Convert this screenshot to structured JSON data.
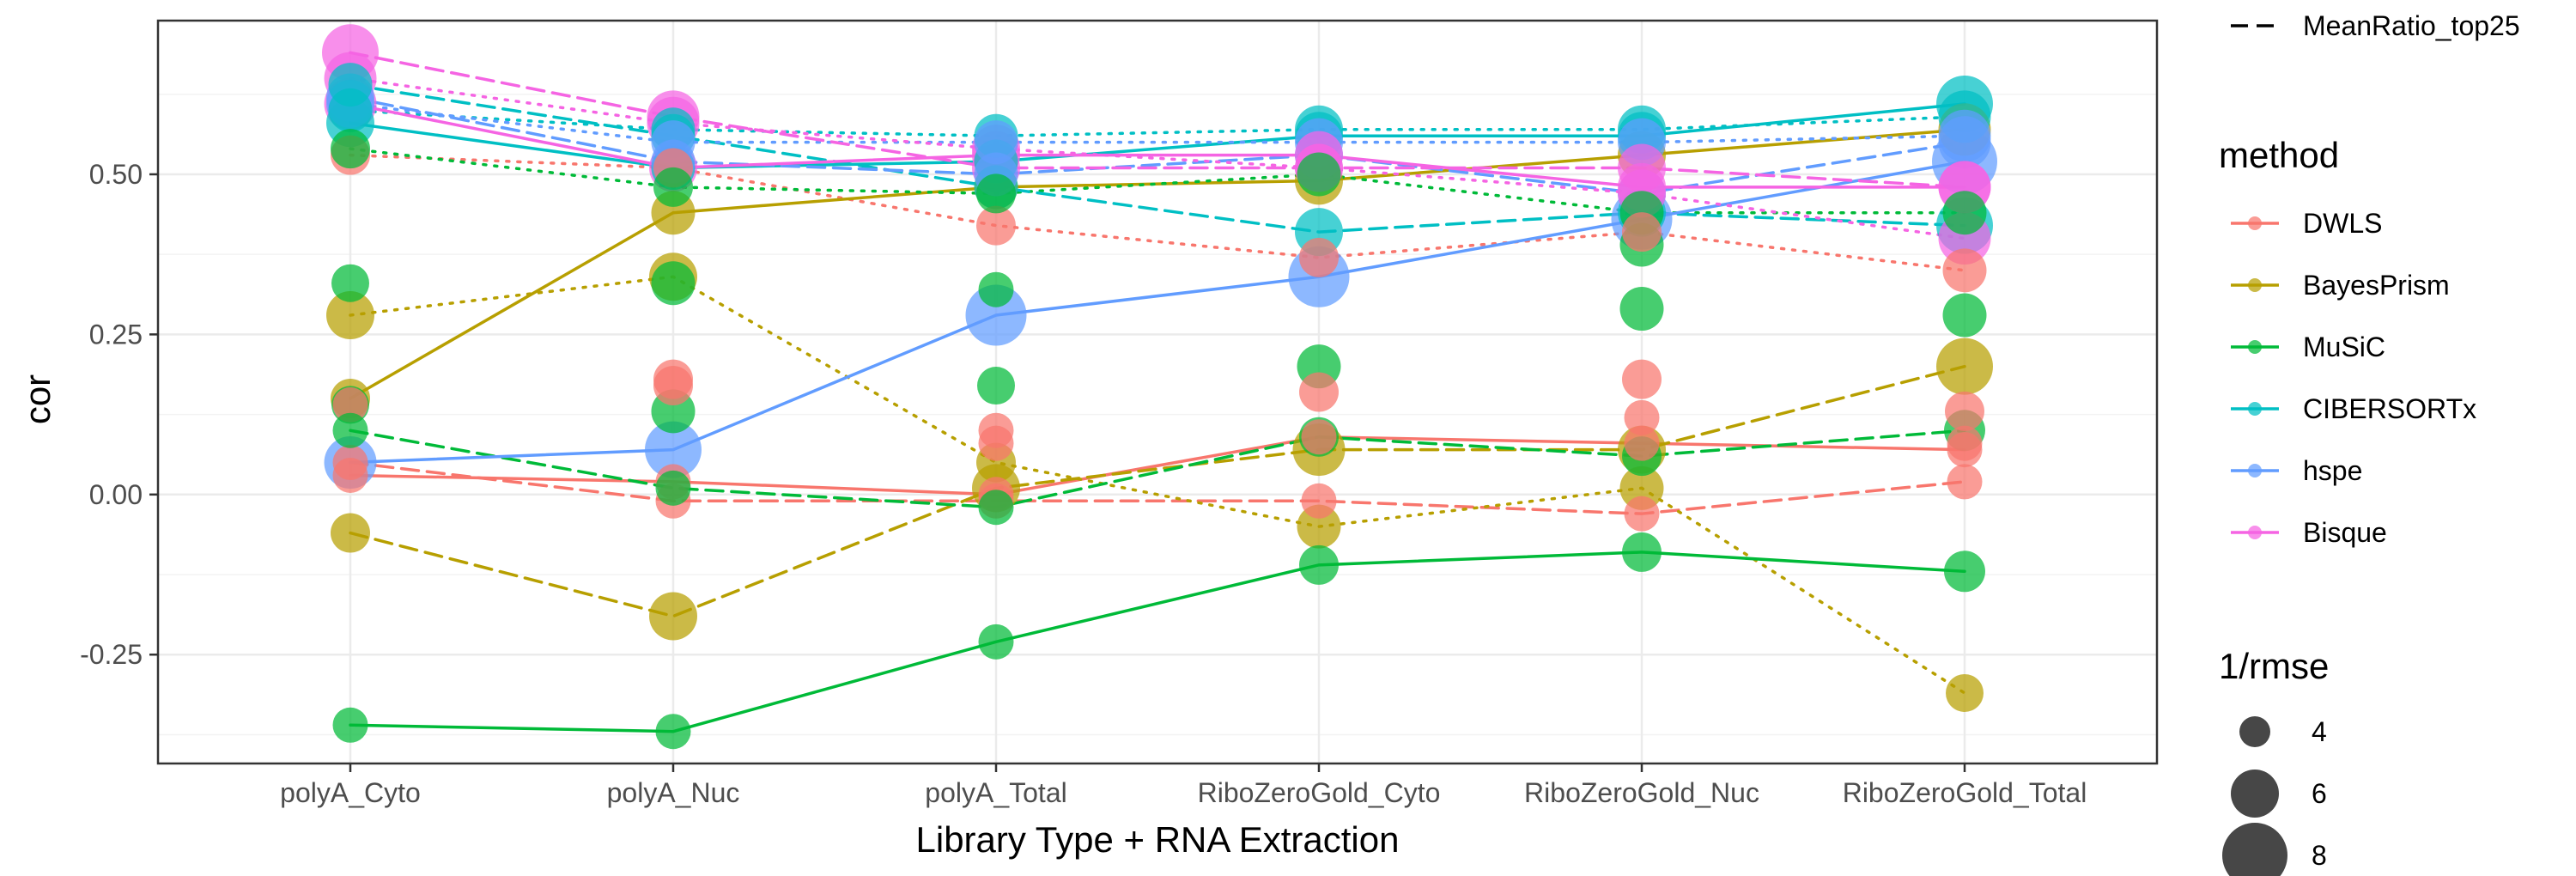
{
  "chart_data": {
    "type": "scatter",
    "xlabel": "Library Type + RNA Extraction",
    "ylabel": "cor",
    "categories": [
      "polyA_Cyto",
      "polyA_Nuc",
      "polyA_Total",
      "RiboZeroGold_Cyto",
      "RiboZeroGold_Nuc",
      "RiboZeroGold_Total"
    ],
    "ylim": [
      -0.42,
      0.74
    ],
    "yticks": [
      -0.25,
      0.0,
      0.25,
      0.5
    ],
    "ytick_labels": [
      "-0.25",
      "0.00",
      "0.25",
      "0.50"
    ],
    "grid": true,
    "legend_position": "right",
    "methods": [
      {
        "name": "DWLS",
        "color": "#F8766D"
      },
      {
        "name": "BayesPrism",
        "color": "#B79F00"
      },
      {
        "name": "MuSiC",
        "color": "#00BA38"
      },
      {
        "name": "CIBERSORTx",
        "color": "#00BFC4"
      },
      {
        "name": "hspe",
        "color": "#619CFF"
      },
      {
        "name": "Bisque",
        "color": "#F564E3"
      }
    ],
    "linetype_legend": [
      {
        "name": "MeanRatio_top25",
        "dash": "dashed"
      }
    ],
    "size_legend": {
      "title": "1/rmse",
      "values": [
        4,
        6,
        8
      ]
    },
    "method_legend_title": "method",
    "series": [
      {
        "method": "DWLS",
        "linetype": "solid",
        "values": [
          0.03,
          0.02,
          0.0,
          0.09,
          0.08,
          0.07
        ],
        "sizes": [
          4.5,
          4.5,
          4.5,
          4.5,
          4.5,
          4.5
        ]
      },
      {
        "method": "DWLS",
        "linetype": "dashed",
        "values": [
          0.05,
          -0.01,
          -0.01,
          -0.01,
          -0.03,
          0.02
        ],
        "sizes": [
          4.5,
          4.5,
          4.5,
          4.5,
          4.5,
          4.5
        ]
      },
      {
        "method": "DWLS",
        "linetype": "dotted",
        "values": [
          0.53,
          0.51,
          0.42,
          0.37,
          0.41,
          0.35
        ],
        "sizes": [
          5,
          5,
          5,
          5,
          5,
          5.5
        ]
      },
      {
        "method": "DWLS",
        "linetype": "none",
        "values": [
          0.14,
          0.17,
          0.1,
          0.16,
          0.18,
          0.13
        ],
        "sizes": [
          4.5,
          5,
          4.5,
          5,
          5,
          5
        ]
      },
      {
        "method": "DWLS",
        "linetype": "none",
        "values": [
          null,
          0.18,
          0.08,
          null,
          0.12,
          0.08
        ],
        "sizes": [
          4.5,
          5,
          4.5,
          4.5,
          4.5,
          4.5
        ]
      },
      {
        "method": "BayesPrism",
        "linetype": "solid",
        "values": [
          0.15,
          0.44,
          0.48,
          0.49,
          0.53,
          0.57
        ],
        "sizes": [
          5,
          5.5,
          5.5,
          6,
          6,
          6.5
        ]
      },
      {
        "method": "BayesPrism",
        "linetype": "dashed",
        "values": [
          -0.06,
          -0.19,
          0.01,
          0.07,
          0.07,
          0.2
        ],
        "sizes": [
          5,
          6,
          6,
          6.5,
          6,
          7
        ]
      },
      {
        "method": "BayesPrism",
        "linetype": "dotted",
        "values": [
          0.28,
          0.34,
          0.05,
          -0.05,
          0.01,
          -0.31
        ],
        "sizes": [
          6,
          6,
          5,
          5.5,
          5.5,
          4.8
        ]
      },
      {
        "method": "MuSiC",
        "linetype": "solid",
        "values": [
          -0.36,
          -0.37,
          -0.23,
          -0.11,
          -0.09,
          -0.12
        ],
        "sizes": [
          4.5,
          4.5,
          4.5,
          5,
          5,
          5.2
        ]
      },
      {
        "method": "MuSiC",
        "linetype": "dashed",
        "values": [
          0.1,
          0.01,
          -0.02,
          0.09,
          0.06,
          0.1
        ],
        "sizes": [
          4.5,
          4.5,
          4.5,
          5,
          5,
          5.2
        ]
      },
      {
        "method": "MuSiC",
        "linetype": "dotted",
        "values": [
          0.54,
          0.48,
          0.47,
          0.5,
          0.44,
          0.44
        ],
        "sizes": [
          5,
          5,
          5,
          5.5,
          5.5,
          5.5
        ]
      },
      {
        "method": "MuSiC",
        "linetype": "none",
        "values": [
          0.33,
          0.13,
          0.32,
          0.2,
          0.29,
          0.28
        ],
        "sizes": [
          4.8,
          5.5,
          4.5,
          5.5,
          5.5,
          5.5
        ]
      },
      {
        "method": "MuSiC",
        "linetype": "none",
        "values": [
          0.14,
          0.33,
          0.17,
          null,
          0.39,
          null
        ],
        "sizes": [
          4.8,
          5.5,
          4.8,
          4.5,
          5.5,
          4.5
        ]
      },
      {
        "method": "CIBERSORTx",
        "linetype": "solid",
        "values": [
          0.58,
          0.51,
          0.52,
          0.56,
          0.56,
          0.61
        ],
        "sizes": [
          6,
          5.5,
          5.5,
          6,
          6,
          7
        ]
      },
      {
        "method": "CIBERSORTx",
        "linetype": "dashed",
        "values": [
          0.64,
          0.56,
          0.48,
          0.41,
          0.44,
          0.42
        ],
        "sizes": [
          5.5,
          5.5,
          5.5,
          6,
          6,
          7
        ]
      },
      {
        "method": "CIBERSORTx",
        "linetype": "dotted",
        "values": [
          0.6,
          0.57,
          0.56,
          0.57,
          0.57,
          0.59
        ],
        "sizes": [
          5.5,
          5.5,
          5.5,
          6,
          6,
          6.5
        ]
      },
      {
        "method": "hspe",
        "linetype": "solid",
        "values": [
          0.05,
          0.07,
          0.28,
          0.34,
          0.43,
          0.52
        ],
        "sizes": [
          6.5,
          7,
          7.5,
          7.5,
          7.5,
          8
        ]
      },
      {
        "method": "hspe",
        "linetype": "dashed",
        "values": [
          0.62,
          0.52,
          0.5,
          0.53,
          0.47,
          0.55
        ],
        "sizes": [
          6,
          5.5,
          5.5,
          6,
          6,
          6.5
        ]
      },
      {
        "method": "hspe",
        "linetype": "dotted",
        "values": [
          0.61,
          0.55,
          0.55,
          0.55,
          0.55,
          0.56
        ],
        "sizes": [
          6,
          5.5,
          5.5,
          6,
          6,
          6.5
        ]
      },
      {
        "method": "Bisque",
        "linetype": "solid",
        "values": [
          0.61,
          0.51,
          0.53,
          0.53,
          0.48,
          0.48
        ],
        "sizes": [
          6.5,
          6,
          6,
          6,
          6,
          6.5
        ]
      },
      {
        "method": "Bisque",
        "linetype": "dashed",
        "values": [
          0.69,
          0.59,
          0.51,
          0.51,
          0.51,
          0.48
        ],
        "sizes": [
          7,
          6.5,
          6,
          6,
          6,
          6.5
        ]
      },
      {
        "method": "Bisque",
        "linetype": "dotted",
        "values": [
          0.65,
          0.58,
          0.54,
          0.51,
          0.47,
          0.4
        ],
        "sizes": [
          6.5,
          6.5,
          6,
          6,
          6,
          6.5
        ]
      }
    ]
  }
}
